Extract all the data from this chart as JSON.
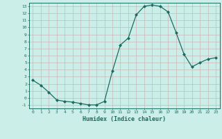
{
  "x": [
    0,
    1,
    2,
    3,
    4,
    5,
    6,
    7,
    8,
    9,
    10,
    11,
    12,
    13,
    14,
    15,
    16,
    17,
    18,
    19,
    20,
    21,
    22,
    23
  ],
  "y": [
    2.5,
    1.8,
    0.8,
    -0.3,
    -0.5,
    -0.6,
    -0.8,
    -1.0,
    -1.0,
    -0.5,
    3.8,
    7.5,
    8.5,
    11.8,
    13.0,
    13.2,
    13.0,
    12.2,
    9.3,
    6.2,
    4.4,
    5.0,
    5.5,
    5.7
  ],
  "xlabel": "Humidex (Indice chaleur)",
  "line_color": "#1a6b60",
  "bg_color": "#cceee8",
  "plot_bg_color": "#cceee8",
  "grid_color": "#b8d8d2",
  "ylim": [
    -1.5,
    13.5
  ],
  "xlim": [
    -0.5,
    23.5
  ],
  "yticks": [
    -1,
    0,
    1,
    2,
    3,
    4,
    5,
    6,
    7,
    8,
    9,
    10,
    11,
    12,
    13
  ],
  "xticks": [
    0,
    1,
    2,
    3,
    4,
    5,
    6,
    7,
    8,
    9,
    10,
    11,
    12,
    13,
    14,
    15,
    16,
    17,
    18,
    19,
    20,
    21,
    22,
    23
  ]
}
